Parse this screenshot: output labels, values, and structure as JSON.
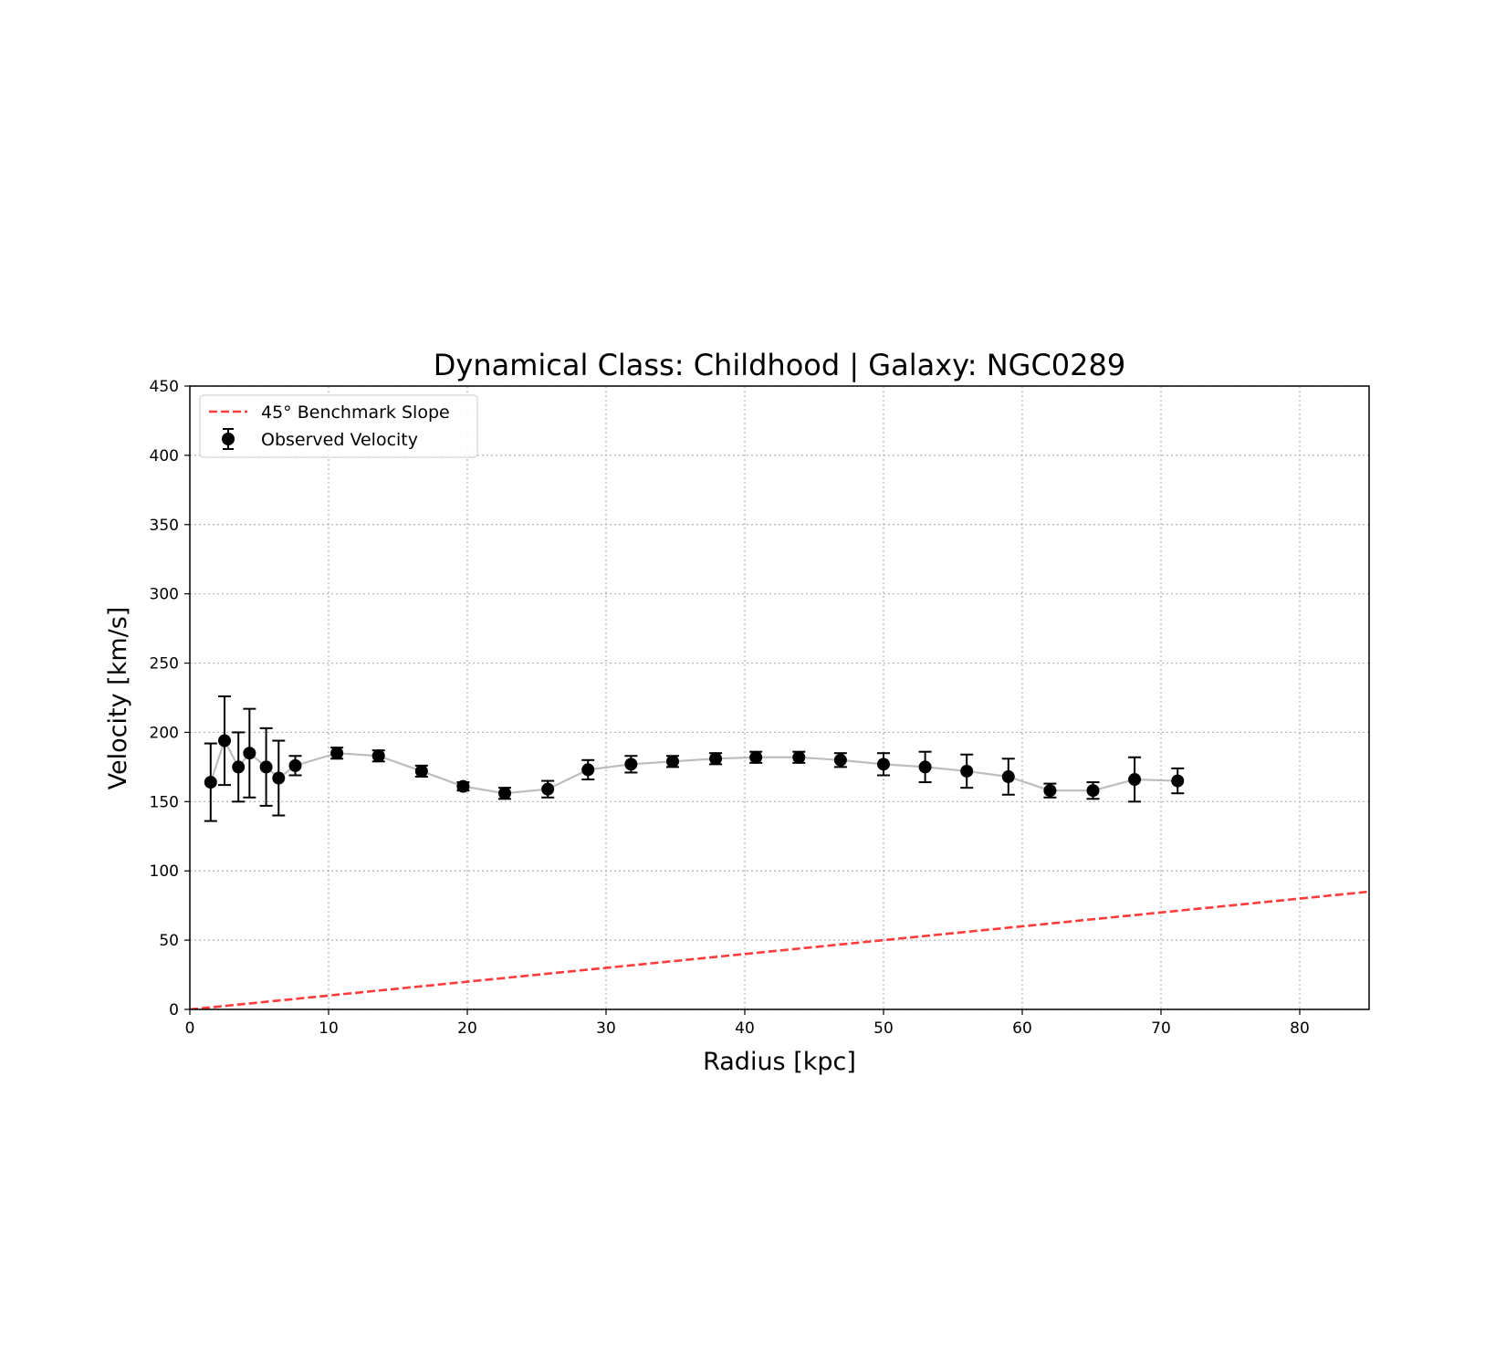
{
  "chart_data": {
    "type": "scatter",
    "title": "Dynamical Class: Childhood | Galaxy: NGC0289",
    "xlabel": "Radius [kpc]",
    "ylabel": "Velocity [km/s]",
    "xlim": [
      0,
      85
    ],
    "ylim": [
      0,
      450
    ],
    "xticks": [
      0,
      10,
      20,
      30,
      40,
      50,
      60,
      70,
      80
    ],
    "yticks": [
      0,
      50,
      100,
      150,
      200,
      250,
      300,
      350,
      400,
      450
    ],
    "grid": true,
    "legend_position": "top-left",
    "series": [
      {
        "name": "45° Benchmark Slope",
        "kind": "line",
        "style": "dashed",
        "color": "#ff3b3b",
        "x": [
          0,
          85
        ],
        "y": [
          0,
          85
        ]
      },
      {
        "name": "Observed Velocity",
        "kind": "errorbar",
        "color": "#000000",
        "connector_color": "#bdbdbd",
        "x": [
          1.5,
          2.5,
          3.5,
          4.3,
          5.5,
          6.4,
          7.6,
          10.6,
          13.6,
          16.7,
          19.7,
          22.7,
          25.8,
          28.7,
          31.8,
          34.8,
          37.9,
          40.8,
          43.9,
          46.9,
          50.0,
          53.0,
          56.0,
          59.0,
          62.0,
          65.1,
          68.1,
          71.2
        ],
        "y": [
          164,
          194,
          175,
          185,
          175,
          167,
          176,
          185,
          183,
          172,
          161,
          156,
          159,
          173,
          177,
          179,
          181,
          182,
          182,
          180,
          177,
          175,
          172,
          168,
          158,
          158,
          166,
          165
        ],
        "yerr": [
          28,
          32,
          25,
          32,
          28,
          27,
          7,
          4,
          4,
          4,
          3,
          4,
          6,
          7,
          6,
          4,
          4,
          4,
          4,
          5,
          8,
          11,
          12,
          13,
          5,
          6,
          16,
          9
        ]
      }
    ]
  }
}
